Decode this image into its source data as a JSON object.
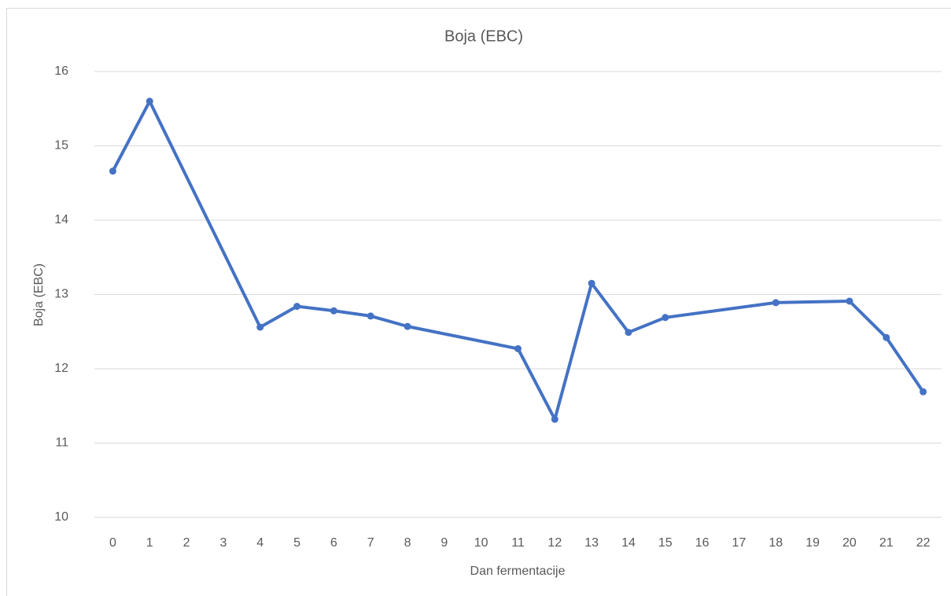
{
  "chart_data": {
    "type": "line",
    "title": "Boja (EBC)",
    "x_label": "Dan fermentacije",
    "y_label": "Boja (EBC)",
    "x": [
      0,
      1,
      4,
      5,
      6,
      7,
      8,
      11,
      12,
      13,
      14,
      15,
      18,
      20,
      21,
      22
    ],
    "series": [
      {
        "name": "Boja (EBC)",
        "color": "#4472c4",
        "values": [
          14.66,
          15.6,
          12.56,
          12.84,
          12.78,
          12.71,
          12.57,
          12.27,
          11.32,
          13.15,
          12.49,
          12.69,
          12.89,
          12.91,
          12.42,
          11.69
        ]
      }
    ],
    "xlim": [
      -0.5,
      22.5
    ],
    "xticks": [
      0,
      1,
      2,
      3,
      4,
      5,
      6,
      7,
      8,
      9,
      10,
      11,
      12,
      13,
      14,
      15,
      16,
      17,
      18,
      19,
      20,
      21,
      22
    ],
    "ylim": [
      10,
      16
    ],
    "yticks": [
      10,
      11,
      12,
      13,
      14,
      15,
      16
    ],
    "grid": true
  }
}
